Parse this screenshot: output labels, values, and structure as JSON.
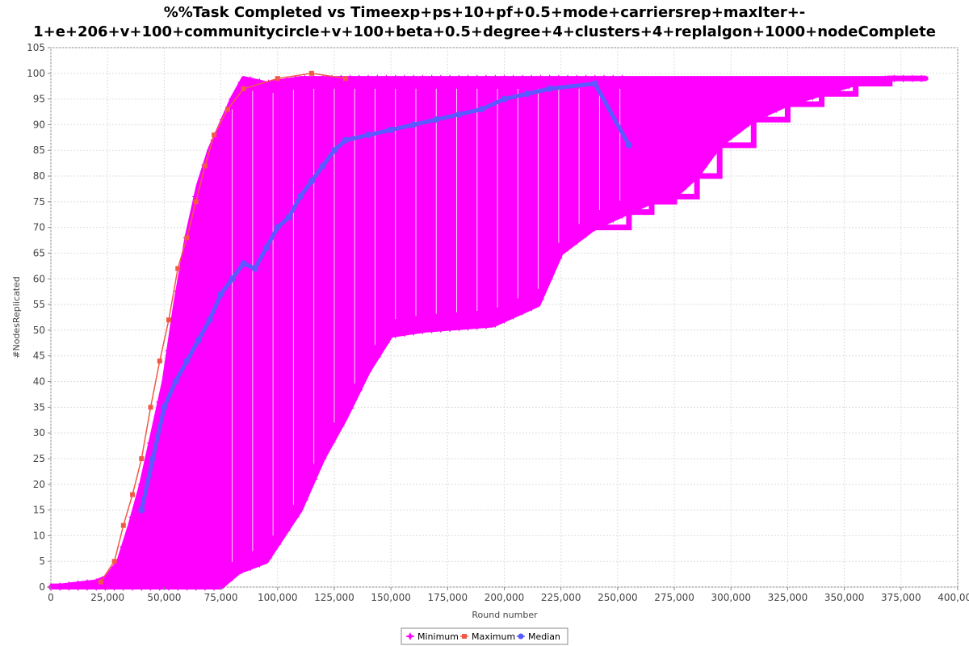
{
  "chart_data": {
    "type": "line",
    "title_lines": [
      "%%Task Completed vs Timeexp+ps+10+pf+0.5+mode+carriersrep+maxIter+-",
      "1+e+206+v+100+communitycircle+v+100+beta+0.5+degree+4+clusters+4+replalgon+1000+nodeComplete"
    ],
    "xlabel": "Round number",
    "ylabel": "#NodesReplicated",
    "xlim": [
      0,
      400000
    ],
    "ylim": [
      0,
      105
    ],
    "x_ticks": [
      0,
      25000,
      50000,
      75000,
      100000,
      125000,
      150000,
      175000,
      200000,
      225000,
      250000,
      275000,
      300000,
      325000,
      350000,
      375000,
      400000
    ],
    "x_tick_labels": [
      "0",
      "25,000",
      "50,000",
      "75,000",
      "100,000",
      "125,000",
      "150,000",
      "175,000",
      "200,000",
      "225,000",
      "250,000",
      "275,000",
      "300,000",
      "325,000",
      "350,000",
      "375,000",
      "400,000"
    ],
    "y_ticks": [
      0,
      5,
      10,
      15,
      20,
      25,
      30,
      35,
      40,
      45,
      50,
      55,
      60,
      65,
      70,
      75,
      80,
      85,
      90,
      95,
      100,
      105
    ],
    "grid": true,
    "legend_position": "bottom-center",
    "series": [
      {
        "name": "Minimum",
        "color": "#ff00ff",
        "marker": "star",
        "envelope_low": [
          [
            0,
            0
          ],
          [
            25000,
            0
          ],
          [
            50000,
            0
          ],
          [
            75000,
            0
          ],
          [
            83000,
            3
          ],
          [
            95000,
            5
          ],
          [
            110000,
            15
          ],
          [
            120000,
            25
          ],
          [
            130000,
            33
          ],
          [
            140000,
            42
          ],
          [
            150000,
            49
          ],
          [
            165000,
            50
          ],
          [
            195000,
            51
          ],
          [
            215000,
            55
          ],
          [
            225000,
            65
          ],
          [
            240000,
            70
          ],
          [
            255000,
            73
          ],
          [
            265000,
            75
          ],
          [
            275000,
            76
          ],
          [
            285000,
            80
          ],
          [
            295000,
            86
          ],
          [
            310000,
            91
          ],
          [
            325000,
            94
          ],
          [
            340000,
            96
          ],
          [
            355000,
            98
          ],
          [
            370000,
            99
          ],
          [
            386000,
            99
          ]
        ],
        "envelope_high": [
          [
            0,
            0
          ],
          [
            20000,
            1
          ],
          [
            25000,
            2
          ],
          [
            30000,
            5
          ],
          [
            35000,
            12
          ],
          [
            40000,
            20
          ],
          [
            45000,
            30
          ],
          [
            50000,
            40
          ],
          [
            55000,
            55
          ],
          [
            60000,
            68
          ],
          [
            65000,
            78
          ],
          [
            70000,
            85
          ],
          [
            75000,
            90
          ],
          [
            80000,
            95
          ],
          [
            85000,
            99
          ],
          [
            95000,
            98
          ],
          [
            110000,
            99
          ],
          [
            130000,
            99
          ],
          [
            160000,
            99
          ],
          [
            200000,
            99
          ],
          [
            230000,
            99
          ],
          [
            255000,
            99
          ]
        ]
      },
      {
        "name": "Maximum",
        "color": "#f05a46",
        "marker": "square",
        "points": [
          [
            22000,
            1
          ],
          [
            28000,
            5
          ],
          [
            32000,
            12
          ],
          [
            36000,
            18
          ],
          [
            40000,
            25
          ],
          [
            44000,
            35
          ],
          [
            48000,
            44
          ],
          [
            52000,
            52
          ],
          [
            56000,
            62
          ],
          [
            60000,
            68
          ],
          [
            64000,
            75
          ],
          [
            68000,
            82
          ],
          [
            72000,
            88
          ],
          [
            78000,
            93
          ],
          [
            85000,
            97
          ],
          [
            100000,
            99
          ],
          [
            115000,
            100
          ],
          [
            130000,
            99
          ]
        ]
      },
      {
        "name": "Median",
        "color": "#5a5aff",
        "marker": "circle",
        "points": [
          [
            40000,
            15
          ],
          [
            45000,
            25
          ],
          [
            50000,
            35
          ],
          [
            55000,
            40
          ],
          [
            60000,
            44
          ],
          [
            65000,
            48
          ],
          [
            70000,
            52
          ],
          [
            75000,
            57
          ],
          [
            80000,
            60
          ],
          [
            85000,
            63
          ],
          [
            90000,
            62
          ],
          [
            95000,
            66
          ],
          [
            100000,
            70
          ],
          [
            105000,
            72
          ],
          [
            110000,
            76
          ],
          [
            115000,
            79
          ],
          [
            120000,
            82
          ],
          [
            125000,
            85
          ],
          [
            130000,
            87
          ],
          [
            140000,
            88
          ],
          [
            150000,
            89
          ],
          [
            160000,
            90
          ],
          [
            170000,
            91
          ],
          [
            180000,
            92
          ],
          [
            190000,
            93
          ],
          [
            200000,
            95
          ],
          [
            210000,
            96
          ],
          [
            220000,
            97
          ],
          [
            240000,
            98
          ],
          [
            255000,
            86
          ]
        ]
      }
    ]
  }
}
